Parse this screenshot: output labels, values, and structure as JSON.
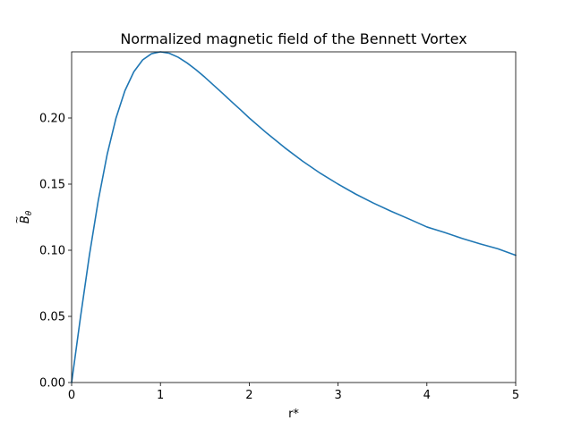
{
  "chart_data": {
    "type": "line",
    "title": "Normalized magnetic field of the Bennett Vortex",
    "xlabel": "r*",
    "ylabel_base": "B",
    "ylabel_accent": "~",
    "ylabel_sub": "θ",
    "xlim": [
      0,
      5
    ],
    "ylim": [
      0,
      0.25
    ],
    "grid": false,
    "xticks": [
      0,
      1,
      2,
      3,
      4,
      5
    ],
    "xtick_labels": [
      "0",
      "1",
      "2",
      "3",
      "4",
      "5"
    ],
    "yticks": [
      0,
      0.05,
      0.1,
      0.15,
      0.2
    ],
    "ytick_labels": [
      "0.00",
      "0.05",
      "0.10",
      "0.15",
      "0.20"
    ],
    "series": [
      {
        "color": "#1f77b4",
        "x": [
          0,
          0.1,
          0.2,
          0.3,
          0.4,
          0.5,
          0.6,
          0.7,
          0.8,
          0.9,
          1.0,
          1.1,
          1.2,
          1.3,
          1.4,
          1.5,
          1.6,
          1.7,
          1.8,
          1.9,
          2.0,
          2.2,
          2.4,
          2.6,
          2.8,
          3.0,
          3.2,
          3.4,
          3.6,
          3.8,
          4.0,
          4.2,
          4.4,
          4.6,
          4.8,
          5.0
        ],
        "y": [
          0,
          0.0495,
          0.0962,
          0.1376,
          0.1724,
          0.2,
          0.2206,
          0.2349,
          0.2439,
          0.2486,
          0.25,
          0.2489,
          0.2459,
          0.2416,
          0.2365,
          0.2308,
          0.2247,
          0.2186,
          0.2124,
          0.2063,
          0.2,
          0.1884,
          0.1775,
          0.1674,
          0.1582,
          0.15,
          0.1424,
          0.1356,
          0.1294,
          0.1236,
          0.1176,
          0.1134,
          0.1089,
          0.1048,
          0.1011,
          0.0962
        ]
      }
    ]
  }
}
